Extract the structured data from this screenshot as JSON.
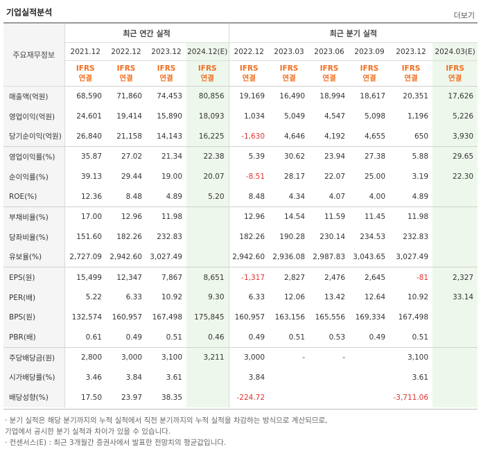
{
  "header": {
    "title": "기업실적분석",
    "more_label": "더보기"
  },
  "table": {
    "corner_label": "주요재무정보",
    "group_annual": "최근 연간 실적",
    "group_quarter": "최근 분기 실적",
    "periods": [
      "2021.12",
      "2022.12",
      "2023.12",
      "2024.12(E)",
      "2022.12",
      "2023.03",
      "2023.06",
      "2023.09",
      "2023.12",
      "2024.03(E)"
    ],
    "ifrs_line1": "IFRS",
    "ifrs_line2": "연결",
    "rows": [
      {
        "label": "매출액(억원)",
        "values": [
          "68,590",
          "71,860",
          "74,453",
          "80,856",
          "19,169",
          "16,490",
          "18,994",
          "18,617",
          "20,351",
          "17,626"
        ]
      },
      {
        "label": "영업이익(억원)",
        "values": [
          "24,601",
          "19,414",
          "15,890",
          "18,093",
          "1,034",
          "5,049",
          "4,547",
          "5,098",
          "1,196",
          "5,226"
        ]
      },
      {
        "label": "당기순이익(억원)",
        "values": [
          "26,840",
          "21,158",
          "14,143",
          "16,225",
          "-1,630",
          "4,646",
          "4,192",
          "4,655",
          "650",
          "3,930"
        ]
      },
      {
        "label": "영업이익률(%)",
        "values": [
          "35.87",
          "27.02",
          "21.34",
          "22.38",
          "5.39",
          "30.62",
          "23.94",
          "27.38",
          "5.88",
          "29.65"
        ]
      },
      {
        "label": "순이익률(%)",
        "values": [
          "39.13",
          "29.44",
          "19.00",
          "20.07",
          "-8.51",
          "28.17",
          "22.07",
          "25.00",
          "3.19",
          "22.30"
        ]
      },
      {
        "label": "ROE(%)",
        "values": [
          "12.36",
          "8.48",
          "4.89",
          "5.20",
          "8.48",
          "4.34",
          "4.07",
          "4.00",
          "4.89",
          ""
        ]
      },
      {
        "label": "부채비율(%)",
        "values": [
          "17.00",
          "12.96",
          "11.98",
          "",
          "12.96",
          "14.54",
          "11.59",
          "11.45",
          "11.98",
          ""
        ]
      },
      {
        "label": "당좌비율(%)",
        "values": [
          "151.60",
          "182.26",
          "232.83",
          "",
          "182.26",
          "190.28",
          "230.14",
          "234.53",
          "232.83",
          ""
        ]
      },
      {
        "label": "유보율(%)",
        "values": [
          "2,727.09",
          "2,942.60",
          "3,027.49",
          "",
          "2,942.60",
          "2,936.08",
          "2,987.83",
          "3,043.65",
          "3,027.49",
          ""
        ]
      },
      {
        "label": "EPS(원)",
        "values": [
          "15,499",
          "12,347",
          "7,867",
          "8,651",
          "-1,317",
          "2,827",
          "2,476",
          "2,645",
          "-81",
          "2,327"
        ]
      },
      {
        "label": "PER(배)",
        "values": [
          "5.22",
          "6.33",
          "10.92",
          "9.30",
          "6.33",
          "12.06",
          "13.42",
          "12.64",
          "10.92",
          "33.14"
        ]
      },
      {
        "label": "BPS(원)",
        "values": [
          "132,574",
          "160,957",
          "167,498",
          "175,845",
          "160,957",
          "163,156",
          "165,556",
          "169,334",
          "167,498",
          ""
        ]
      },
      {
        "label": "PBR(배)",
        "values": [
          "0.61",
          "0.49",
          "0.51",
          "0.46",
          "0.49",
          "0.51",
          "0.53",
          "0.49",
          "0.51",
          ""
        ]
      },
      {
        "label": "주당배당금(원)",
        "values": [
          "2,800",
          "3,000",
          "3,100",
          "3,211",
          "3,000",
          "-",
          "-",
          "",
          "3,100",
          ""
        ]
      },
      {
        "label": "시가배당률(%)",
        "values": [
          "3.46",
          "3.84",
          "3.61",
          "",
          "3.84",
          "",
          "",
          "",
          "3.61",
          ""
        ]
      },
      {
        "label": "배당성향(%)",
        "values": [
          "17.50",
          "23.97",
          "38.35",
          "",
          "-224.72",
          "",
          "",
          "",
          "-3,711.06",
          ""
        ]
      }
    ]
  },
  "notes": [
    "· 분기 실적은 해당 분기까지의 누적 실적에서 직전 분기까지의 누적 실적을 차감하는 방식으로 계산되므로,",
    "  기업에서 공시한 분기 실적과 차이가 있을 수 있습니다.",
    "· 컨센서스(E) : 최근 3개월간 증권사에서 발표한 전망치의 평균값입니다."
  ],
  "colors": {
    "ifrs": "#f06e1f",
    "negative": "#e0302f",
    "estimate_bg": "#eef7ec",
    "header_bg": "#f5f5f5"
  }
}
